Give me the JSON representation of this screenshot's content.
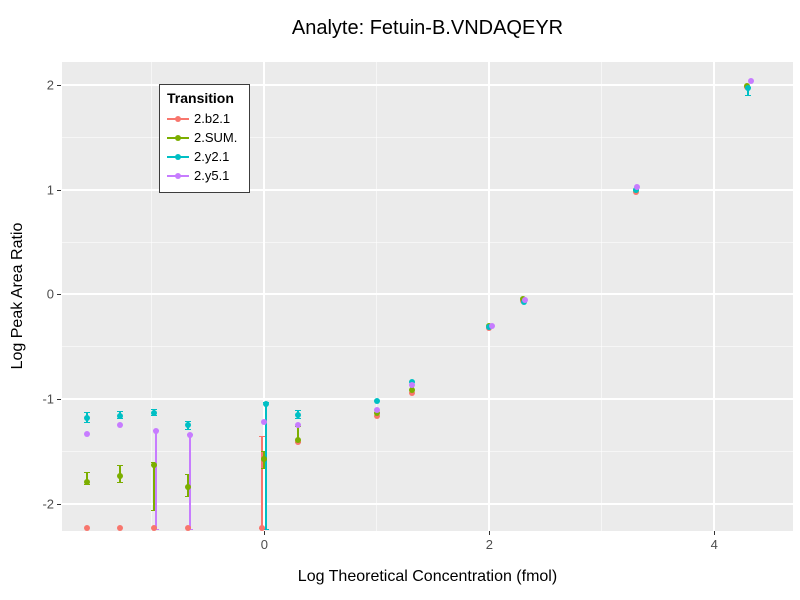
{
  "chart_data": {
    "type": "scatter",
    "title": "Analyte: Fetuin-B.VNDAQEYR",
    "xlabel": "Log Theoretical Concentration (fmol)",
    "ylabel": "Log Peak Area Ratio",
    "xlim": [
      -1.8,
      4.7
    ],
    "ylim": [
      -2.26,
      2.22
    ],
    "x_major_ticks": [
      0,
      2,
      4
    ],
    "x_minor_gridlines": [
      -1,
      1,
      3
    ],
    "y_major_ticks": [
      -2,
      -1,
      0,
      1,
      2
    ],
    "y_minor_gridlines": [
      -1.5,
      -0.5,
      0.5,
      1.5
    ],
    "legend_title": "Transition",
    "legend_position": "top-left-inside",
    "grid": true,
    "panel_background": "#EBEBEB",
    "grid_color": "#FFFFFF",
    "tick_label_color": "#4D4D4D",
    "series": [
      {
        "name": "2.b2.1",
        "color": "#F8766D",
        "points": [
          {
            "x": -1.58,
            "y": -2.23
          },
          {
            "x": -1.28,
            "y": -2.23
          },
          {
            "x": -0.98,
            "y": -2.23
          },
          {
            "x": -0.68,
            "y": -2.23
          },
          {
            "x": -0.02,
            "y": -2.23,
            "lo": -2.24,
            "hi": -1.36
          },
          {
            "x": 0.3,
            "y": -1.41
          },
          {
            "x": 1.0,
            "y": -1.16
          },
          {
            "x": 1.31,
            "y": -0.94
          },
          {
            "x": 2.0,
            "y": -0.32
          },
          {
            "x": 2.3,
            "y": -0.06
          },
          {
            "x": 3.3,
            "y": 0.98
          },
          {
            "x": 4.29,
            "y": 1.98
          }
        ]
      },
      {
        "name": "2.SUM.",
        "color": "#7CAE00",
        "points": [
          {
            "x": -1.58,
            "y": -1.79,
            "lo": -1.82,
            "hi": -1.7
          },
          {
            "x": -1.28,
            "y": -1.73,
            "lo": -1.8,
            "hi": -1.63
          },
          {
            "x": -0.98,
            "y": -1.63,
            "lo": -2.06,
            "hi": -1.61
          },
          {
            "x": -0.68,
            "y": -1.84,
            "lo": -1.93,
            "hi": -1.72
          },
          {
            "x": 0.0,
            "y": -1.57,
            "lo": -1.66,
            "hi": -1.5
          },
          {
            "x": 0.3,
            "y": -1.39,
            "lo": -1.41,
            "hi": -1.26
          },
          {
            "x": 1.0,
            "y": -1.13
          },
          {
            "x": 1.31,
            "y": -0.91
          },
          {
            "x": 2.0,
            "y": -0.3
          },
          {
            "x": 2.3,
            "y": -0.04
          },
          {
            "x": 3.3,
            "y": 1.0
          },
          {
            "x": 4.29,
            "y": 1.99
          }
        ]
      },
      {
        "name": "2.y2.1",
        "color": "#00BFC4",
        "points": [
          {
            "x": -1.58,
            "y": -1.18,
            "lo": -1.22,
            "hi": -1.13
          },
          {
            "x": -1.28,
            "y": -1.16,
            "lo": -1.19,
            "hi": -1.12
          },
          {
            "x": -0.98,
            "y": -1.13,
            "lo": -1.16,
            "hi": -1.1
          },
          {
            "x": -0.68,
            "y": -1.25,
            "lo": -1.29,
            "hi": -1.21
          },
          {
            "x": 0.01,
            "y": -1.05,
            "lo": -2.25,
            "hi": -1.03
          },
          {
            "x": 0.3,
            "y": -1.15,
            "lo": -1.19,
            "hi": -1.11
          },
          {
            "x": 1.0,
            "y": -1.02
          },
          {
            "x": 1.31,
            "y": -0.84
          },
          {
            "x": 2.0,
            "y": -0.31
          },
          {
            "x": 2.31,
            "y": -0.07
          },
          {
            "x": 3.3,
            "y": 1.0
          },
          {
            "x": 4.3,
            "y": 1.97,
            "lo": 1.9,
            "hi": 1.98
          }
        ]
      },
      {
        "name": "2.y5.1",
        "color": "#C77CFF",
        "points": [
          {
            "x": -1.58,
            "y": -1.33
          },
          {
            "x": -1.28,
            "y": -1.25
          },
          {
            "x": -0.96,
            "y": -1.3,
            "lo": -2.25,
            "hi": -1.3
          },
          {
            "x": -0.66,
            "y": -1.34,
            "lo": -2.25,
            "hi": -1.34
          },
          {
            "x": 0.0,
            "y": -1.22
          },
          {
            "x": 0.3,
            "y": -1.25
          },
          {
            "x": 1.0,
            "y": -1.1
          },
          {
            "x": 1.31,
            "y": -0.87
          },
          {
            "x": 2.02,
            "y": -0.3
          },
          {
            "x": 2.32,
            "y": -0.05
          },
          {
            "x": 3.31,
            "y": 1.03
          },
          {
            "x": 4.33,
            "y": 2.04
          }
        ]
      }
    ]
  }
}
